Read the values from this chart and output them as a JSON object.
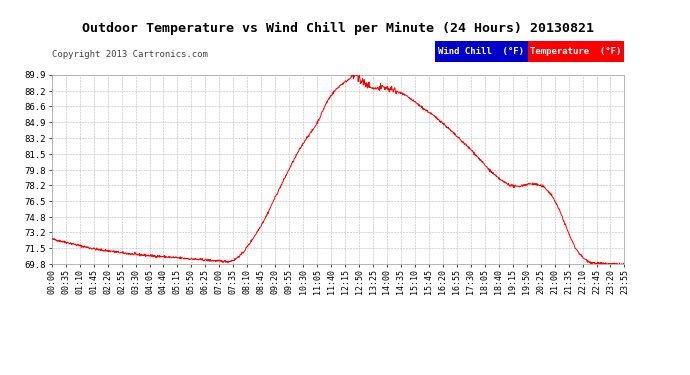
{
  "title": "Outdoor Temperature vs Wind Chill per Minute (24 Hours) 20130821",
  "copyright": "Copyright 2013 Cartronics.com",
  "y_ticks": [
    69.8,
    71.5,
    73.2,
    74.8,
    76.5,
    78.2,
    79.8,
    81.5,
    83.2,
    84.9,
    86.6,
    88.2,
    89.9
  ],
  "x_tick_labels": [
    "00:00",
    "00:35",
    "01:10",
    "01:45",
    "02:20",
    "02:55",
    "03:30",
    "04:05",
    "04:40",
    "05:15",
    "05:50",
    "06:25",
    "07:00",
    "07:35",
    "08:10",
    "08:45",
    "09:20",
    "09:55",
    "10:30",
    "11:05",
    "11:40",
    "12:15",
    "12:50",
    "13:25",
    "14:00",
    "14:35",
    "15:10",
    "15:45",
    "16:20",
    "16:55",
    "17:30",
    "18:05",
    "18:40",
    "19:15",
    "19:50",
    "20:25",
    "21:00",
    "21:35",
    "22:10",
    "22:45",
    "23:20",
    "23:55"
  ],
  "bg_color": "#ffffff",
  "plot_bg_color": "#ffffff",
  "grid_color": "#bbbbbb",
  "line_color": "#ff0000",
  "title_color": "#000000",
  "title_fontsize": 9.5,
  "copyright_fontsize": 6.5,
  "legend_wind_chill_bg": "#0000cc",
  "legend_temp_bg": "#ff0000",
  "legend_text_color": "#ffffff",
  "ylim": [
    69.8,
    89.9
  ],
  "xlim": [
    0,
    1439
  ],
  "key_points": [
    [
      0,
      72.5
    ],
    [
      20,
      72.3
    ],
    [
      40,
      72.1
    ],
    [
      60,
      71.9
    ],
    [
      80,
      71.7
    ],
    [
      100,
      71.5
    ],
    [
      120,
      71.35
    ],
    [
      150,
      71.2
    ],
    [
      180,
      71.0
    ],
    [
      210,
      70.85
    ],
    [
      240,
      70.75
    ],
    [
      270,
      70.65
    ],
    [
      300,
      70.55
    ],
    [
      330,
      70.45
    ],
    [
      360,
      70.35
    ],
    [
      390,
      70.25
    ],
    [
      410,
      70.18
    ],
    [
      420,
      70.15
    ],
    [
      435,
      70.12
    ],
    [
      445,
      70.1
    ],
    [
      460,
      70.3
    ],
    [
      480,
      71.0
    ],
    [
      500,
      72.2
    ],
    [
      520,
      73.5
    ],
    [
      540,
      75.0
    ],
    [
      560,
      76.8
    ],
    [
      580,
      78.5
    ],
    [
      600,
      80.2
    ],
    [
      620,
      81.8
    ],
    [
      640,
      83.2
    ],
    [
      655,
      84.0
    ],
    [
      665,
      84.7
    ],
    [
      675,
      85.5
    ],
    [
      685,
      86.5
    ],
    [
      695,
      87.3
    ],
    [
      705,
      87.9
    ],
    [
      715,
      88.4
    ],
    [
      725,
      88.8
    ],
    [
      735,
      89.1
    ],
    [
      745,
      89.4
    ],
    [
      752,
      89.7
    ],
    [
      757,
      89.85
    ],
    [
      762,
      89.9
    ],
    [
      767,
      89.75
    ],
    [
      772,
      89.5
    ],
    [
      780,
      89.2
    ],
    [
      790,
      88.9
    ],
    [
      800,
      88.6
    ],
    [
      810,
      88.45
    ],
    [
      820,
      88.5
    ],
    [
      830,
      88.55
    ],
    [
      840,
      88.5
    ],
    [
      850,
      88.4
    ],
    [
      860,
      88.25
    ],
    [
      870,
      88.1
    ],
    [
      880,
      87.9
    ],
    [
      890,
      87.7
    ],
    [
      900,
      87.4
    ],
    [
      910,
      87.1
    ],
    [
      920,
      86.8
    ],
    [
      935,
      86.3
    ],
    [
      950,
      85.9
    ],
    [
      965,
      85.4
    ],
    [
      980,
      84.9
    ],
    [
      995,
      84.3
    ],
    [
      1010,
      83.7
    ],
    [
      1025,
      83.1
    ],
    [
      1040,
      82.5
    ],
    [
      1055,
      81.9
    ],
    [
      1070,
      81.2
    ],
    [
      1085,
      80.5
    ],
    [
      1100,
      79.8
    ],
    [
      1115,
      79.2
    ],
    [
      1130,
      78.7
    ],
    [
      1145,
      78.35
    ],
    [
      1155,
      78.15
    ],
    [
      1165,
      78.05
    ],
    [
      1175,
      78.1
    ],
    [
      1185,
      78.2
    ],
    [
      1195,
      78.3
    ],
    [
      1205,
      78.35
    ],
    [
      1215,
      78.3
    ],
    [
      1225,
      78.2
    ],
    [
      1235,
      78.05
    ],
    [
      1245,
      77.7
    ],
    [
      1255,
      77.2
    ],
    [
      1265,
      76.5
    ],
    [
      1275,
      75.6
    ],
    [
      1285,
      74.6
    ],
    [
      1295,
      73.5
    ],
    [
      1305,
      72.5
    ],
    [
      1315,
      71.6
    ],
    [
      1325,
      71.0
    ],
    [
      1335,
      70.5
    ],
    [
      1345,
      70.2
    ],
    [
      1355,
      70.0
    ],
    [
      1365,
      69.95
    ],
    [
      1380,
      69.88
    ],
    [
      1400,
      69.83
    ],
    [
      1420,
      69.82
    ],
    [
      1435,
      69.81
    ],
    [
      1439,
      69.8
    ]
  ]
}
